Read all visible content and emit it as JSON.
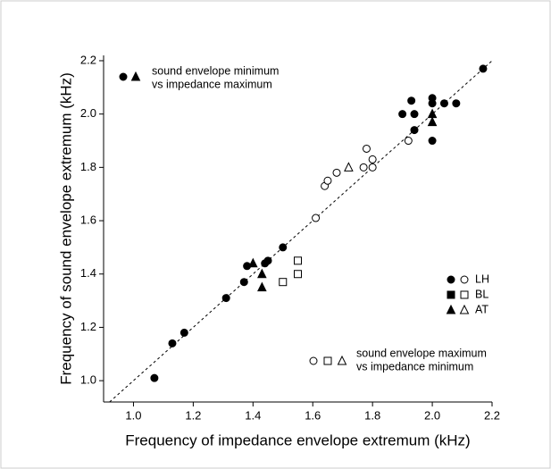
{
  "chart_data": {
    "type": "scatter",
    "x_label": "Frequency of impedance envelope extremum  (kHz)",
    "y_label": "Frequency of sound envelope extremum  (kHz)",
    "xlim": [
      0.9,
      2.2
    ],
    "ylim": [
      0.92,
      2.22
    ],
    "xticks": [
      {
        "value": 1.0,
        "label": "1.0"
      },
      1.2,
      1.4,
      1.6,
      1.8,
      {
        "value": 2.0,
        "label": "2.0"
      },
      2.2
    ],
    "yticks": [
      {
        "value": 1.0,
        "label": "1.0"
      },
      1.2,
      1.4,
      1.6,
      1.8,
      {
        "value": 2.0,
        "label": "2.0"
      },
      2.2
    ],
    "filled_label": [
      "sound envelope minimum",
      "vs impedance maximum"
    ],
    "open_label": [
      "sound envelope maximum",
      "vs impedance minimum"
    ],
    "series": [
      {
        "name": "LH",
        "marker": "circle",
        "color": "#000",
        "filled": {
          "x": [
            1.07,
            1.13,
            1.17,
            1.31,
            1.37,
            1.38,
            1.44,
            1.45,
            1.5,
            1.9,
            1.93,
            1.94,
            1.94,
            2.0,
            2.0,
            2.0,
            2.04,
            2.08,
            2.17
          ],
          "y": [
            1.01,
            1.14,
            1.18,
            1.31,
            1.37,
            1.43,
            1.44,
            1.45,
            1.5,
            2.0,
            2.05,
            2.0,
            1.94,
            2.06,
            2.04,
            1.9,
            2.04,
            2.04,
            2.17
          ]
        },
        "open": {
          "x": [
            1.61,
            1.64,
            1.65,
            1.68,
            1.77,
            1.78,
            1.8,
            1.8,
            1.92
          ],
          "y": [
            1.61,
            1.73,
            1.75,
            1.78,
            1.8,
            1.87,
            1.8,
            1.83,
            1.9
          ]
        }
      },
      {
        "name": "BL",
        "marker": "square",
        "color": "#000",
        "filled": {
          "x": [],
          "y": []
        },
        "open": {
          "x": [
            1.5,
            1.55,
            1.55
          ],
          "y": [
            1.37,
            1.45,
            1.4
          ]
        }
      },
      {
        "name": "AT",
        "marker": "triangle",
        "color": "#000",
        "filled": {
          "x": [
            1.4,
            1.43,
            1.43,
            2.0,
            2.0
          ],
          "y": [
            1.44,
            1.4,
            1.35,
            2.0,
            1.97
          ]
        },
        "open": {
          "x": [
            1.72
          ],
          "y": [
            1.8
          ]
        }
      }
    ]
  }
}
